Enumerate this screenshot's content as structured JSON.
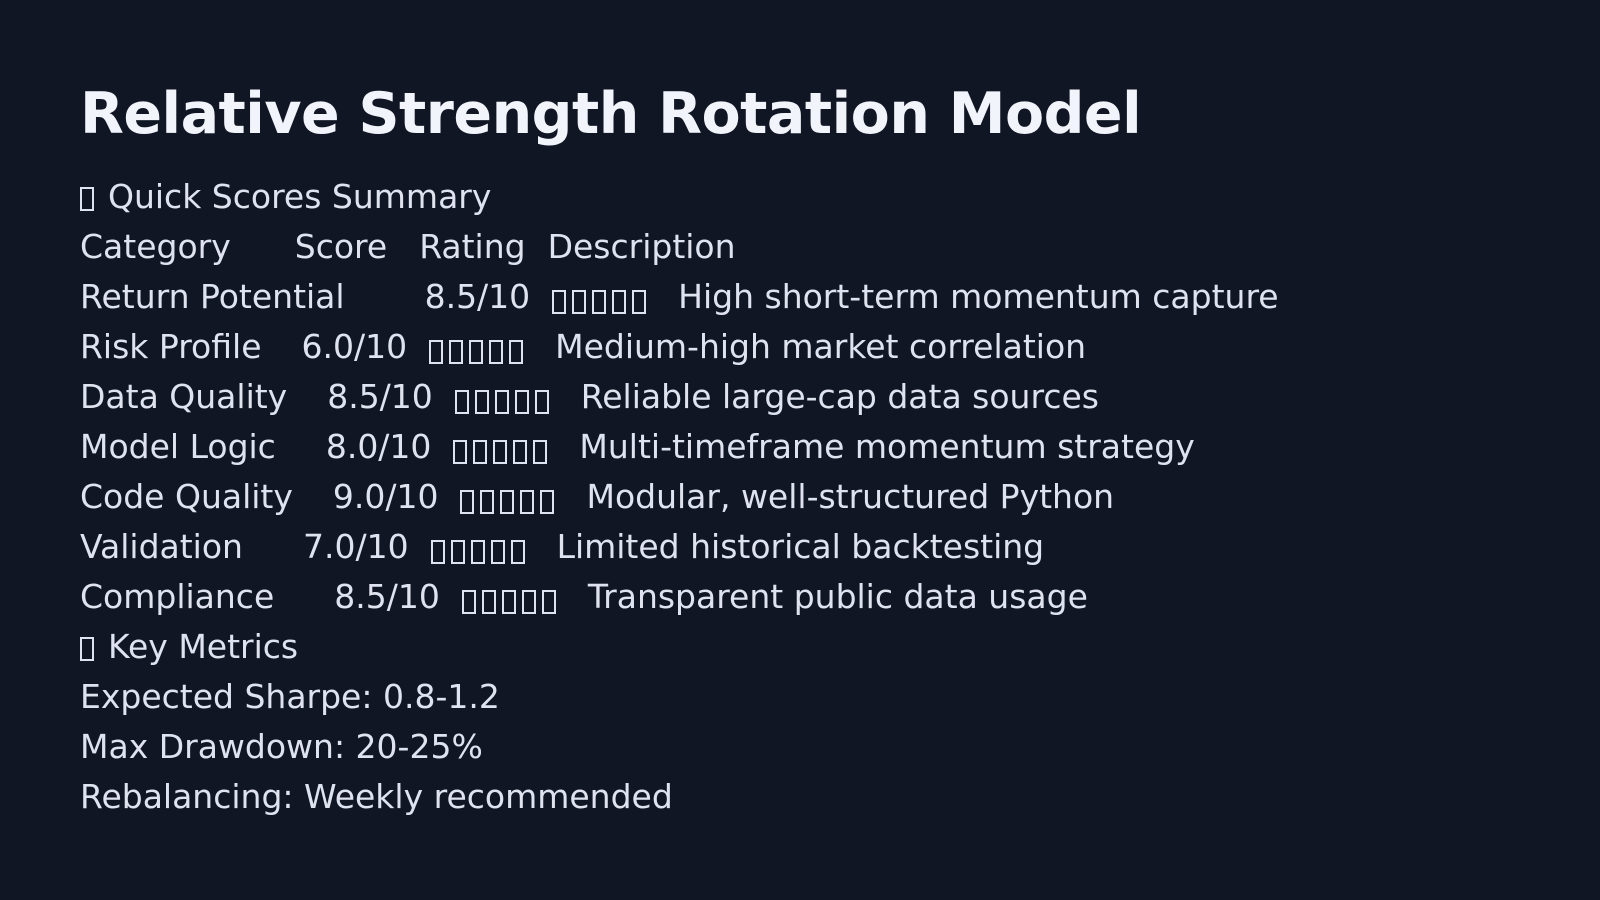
{
  "title": "Relative Strength Rotation Model",
  "summary_section": {
    "heading": "Quick Scores Summary",
    "icon": "chart-icon",
    "columns": {
      "category": "Category",
      "score": "Score",
      "rating": "Rating",
      "description": "Description"
    },
    "rows": [
      {
        "category": "Return Potential",
        "score": "8.5/10",
        "description": "High short-term momentum capture"
      },
      {
        "category": "Risk Profile",
        "score": "6.0/10",
        "description": "Medium-high market correlation"
      },
      {
        "category": "Data Quality",
        "score": "8.5/10",
        "description": "Reliable large-cap data sources"
      },
      {
        "category": "Model Logic",
        "score": "8.0/10",
        "description": "Multi-timeframe momentum strategy"
      },
      {
        "category": "Code Quality",
        "score": "9.0/10",
        "description": "Modular, well-structured Python"
      },
      {
        "category": "Validation",
        "score": "7.0/10",
        "description": "Limited historical backtesting"
      },
      {
        "category": "Compliance",
        "score": "8.5/10",
        "description": "Transparent public data usage"
      }
    ]
  },
  "metrics_section": {
    "heading": "Key Metrics",
    "icon": "metrics-icon",
    "items": [
      {
        "text": "Expected Sharpe: 0.8-1.2"
      },
      {
        "text": "Max Drawdown: 20-25%"
      },
      {
        "text": "Rebalancing: Weekly recommended"
      }
    ]
  },
  "colors": {
    "background": "#111624",
    "text": "#dfe3ef",
    "title": "#f2f4fb"
  }
}
